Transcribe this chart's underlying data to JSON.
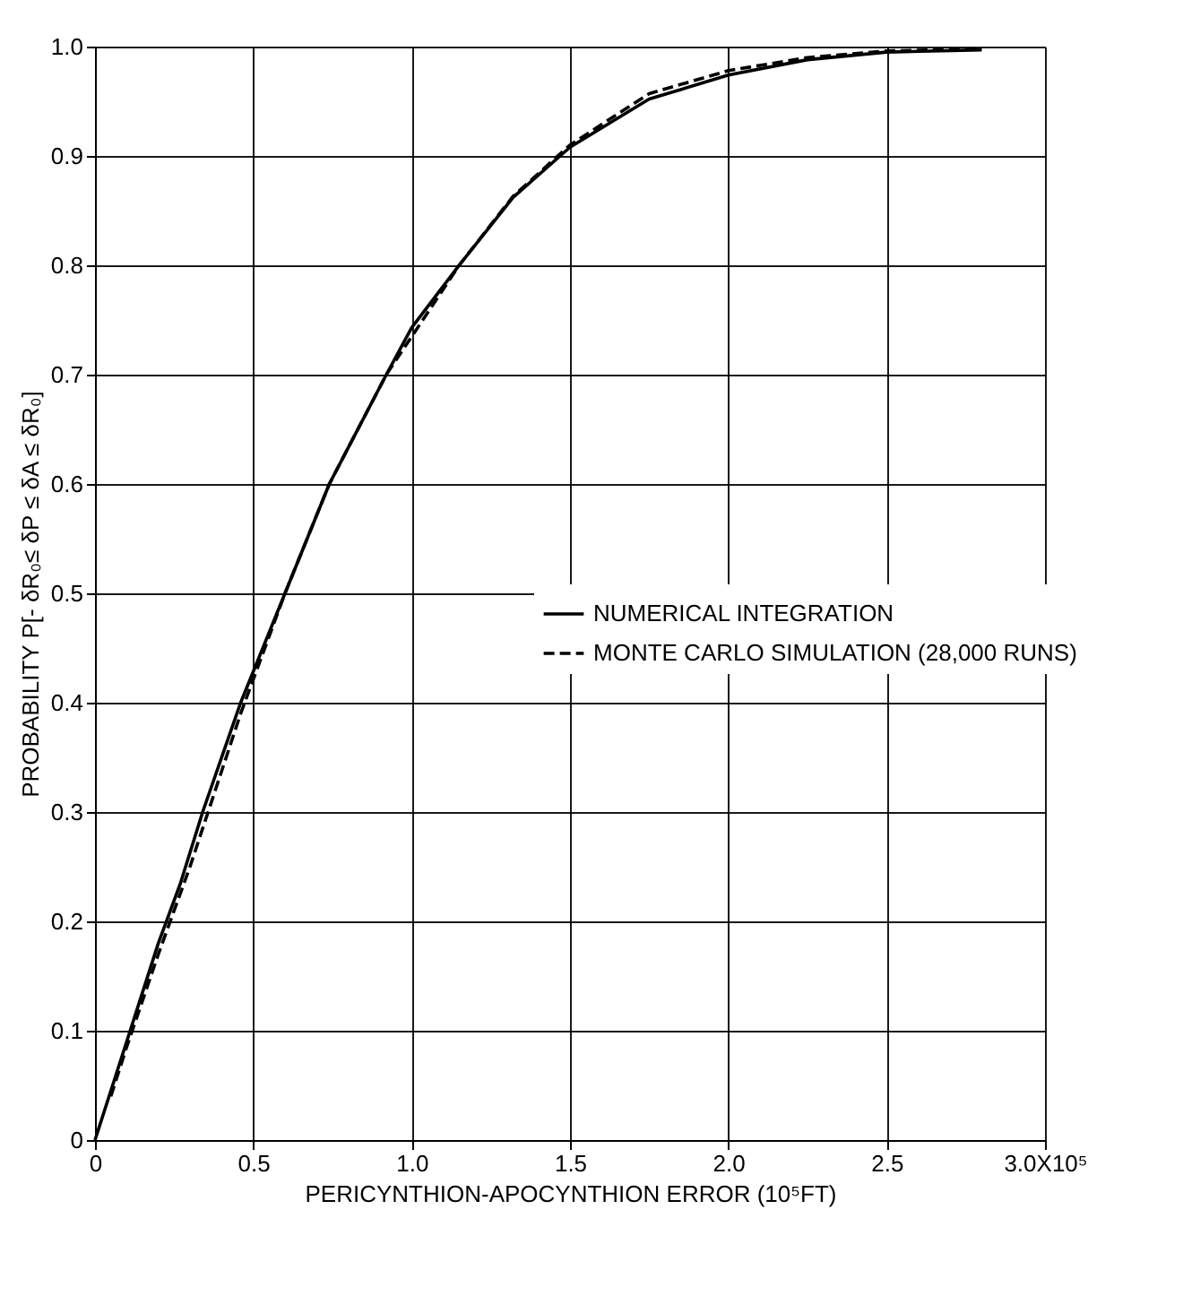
{
  "chart_data": {
    "type": "line",
    "xlabel": "PERICYNTHION-APOCYNTHION ERROR (10⁵FT)",
    "ylabel": "PROBABILITY  P[- δR₀≤ δP ≤ δA ≤ δR₀]",
    "xlim": [
      0,
      3
    ],
    "xticks": [
      0,
      0.5,
      {
        "value": 1,
        "label": "1.0"
      },
      1.5,
      {
        "value": 2,
        "label": "2.0"
      },
      2.5,
      {
        "value": 3,
        "label": "3.0X10⁵"
      }
    ],
    "ylim": [
      0,
      1
    ],
    "yticks": [
      0,
      0.1,
      0.2,
      0.3,
      0.4,
      0.5,
      0.6,
      0.7,
      0.8,
      0.9,
      {
        "value": 1,
        "label": "1.0"
      }
    ],
    "grid": true,
    "legend": "right",
    "marker": "none",
    "series": [
      {
        "name": "NUMERICAL INTEGRATION",
        "color": "#000000",
        "line_style": "solid",
        "x": [
          0,
          0.1,
          0.2,
          0.27,
          0.34,
          0.46,
          0.6,
          0.74,
          0.92,
          1.0,
          1.15,
          1.32,
          1.5,
          1.75,
          2.0,
          2.25,
          2.5,
          2.8
        ],
        "values": [
          0,
          0.09,
          0.18,
          0.235,
          0.3,
          0.4,
          0.5,
          0.6,
          0.7,
          0.743,
          0.8,
          0.862,
          0.908,
          0.952,
          0.974,
          0.988,
          0.995,
          0.997
        ]
      },
      {
        "name": "MONTE CARLO SIMULATION (28,000 RUNS)",
        "color": "#000000",
        "line_style": "dashed",
        "x": [
          0.05,
          0.1,
          0.2,
          0.3,
          0.46,
          0.6,
          0.74,
          0.92,
          1.15,
          1.32,
          1.5,
          1.75,
          2.0,
          2.25,
          2.5,
          2.8
        ],
        "values": [
          0.04,
          0.085,
          0.17,
          0.25,
          0.39,
          0.5,
          0.6,
          0.7,
          0.8,
          0.863,
          0.91,
          0.957,
          0.978,
          0.99,
          0.996,
          0.998
        ]
      }
    ]
  }
}
